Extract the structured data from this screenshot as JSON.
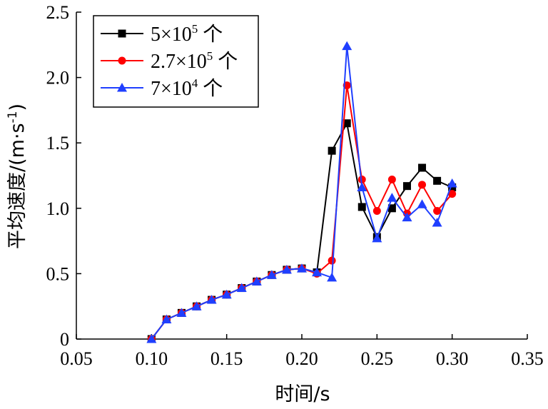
{
  "chart_data": {
    "type": "line",
    "xlabel": "时间/s",
    "ylabel": "平均速度/(m·s",
    "ylabel_sup": "-1",
    "ylabel_tail": ")",
    "xlim": [
      0.05,
      0.35
    ],
    "ylim": [
      0,
      2.5
    ],
    "xticks": [
      "0.05",
      "0.10",
      "0.15",
      "0.20",
      "0.25",
      "0.30",
      "0.35"
    ],
    "yticks": [
      "0",
      "0.5",
      "1.0",
      "1.5",
      "2.0",
      "2.5"
    ],
    "grid": false,
    "legend_position": "top-left",
    "x": [
      0.1,
      0.11,
      0.12,
      0.13,
      0.14,
      0.15,
      0.16,
      0.17,
      0.18,
      0.19,
      0.2,
      0.21,
      0.22,
      0.23,
      0.24,
      0.25,
      0.26,
      0.27,
      0.28,
      0.29,
      0.3
    ],
    "series": [
      {
        "legend_pre": "5×10",
        "legend_sup": "5",
        "legend_post": "个",
        "color": "#000000",
        "marker": "square",
        "values": [
          0.0,
          0.15,
          0.2,
          0.25,
          0.3,
          0.34,
          0.39,
          0.44,
          0.49,
          0.53,
          0.54,
          0.51,
          1.44,
          1.65,
          1.01,
          0.78,
          1.0,
          1.17,
          1.31,
          1.21,
          1.16
        ]
      },
      {
        "legend_pre": "2.7×10",
        "legend_sup": "5",
        "legend_post": "个",
        "color": "#ff0000",
        "marker": "circle",
        "values": [
          0.0,
          0.15,
          0.2,
          0.25,
          0.3,
          0.34,
          0.39,
          0.44,
          0.49,
          0.53,
          0.54,
          0.5,
          0.6,
          1.94,
          1.22,
          0.98,
          1.22,
          0.96,
          1.18,
          0.98,
          1.11
        ]
      },
      {
        "legend_pre": "7×10",
        "legend_sup": "4",
        "legend_post": "个",
        "color": "#1f3fff",
        "marker": "triangle",
        "values": [
          0.0,
          0.15,
          0.2,
          0.25,
          0.3,
          0.34,
          0.39,
          0.44,
          0.49,
          0.53,
          0.54,
          0.51,
          0.47,
          2.24,
          1.16,
          0.77,
          1.08,
          0.93,
          1.03,
          0.89,
          1.19
        ]
      }
    ]
  }
}
